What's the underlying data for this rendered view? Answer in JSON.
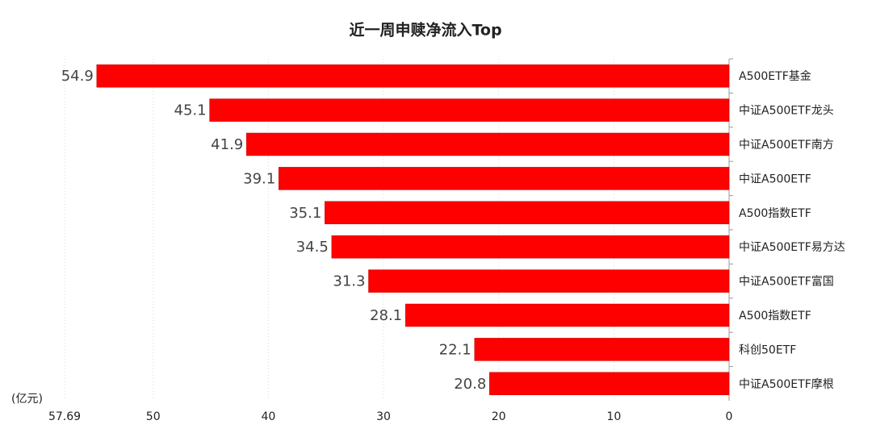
{
  "chart_data": {
    "type": "barh",
    "title": "近一周申赎净流入Top",
    "unit": "(亿元)",
    "categories": [
      "A500ETF基金",
      "中证A500ETF龙头",
      "中证A500ETF南方",
      "中证A500ETF",
      "A500指数ETF",
      "中证A500ETF易方达",
      "中证A500ETF富国",
      "A500指数ETF",
      "科创50ETF",
      "中证A500ETF摩根"
    ],
    "values": [
      54.9,
      45.1,
      41.9,
      39.1,
      35.1,
      34.5,
      31.3,
      28.1,
      22.1,
      20.8
    ],
    "color": "#ff0000",
    "xlim": [
      57.69,
      0
    ],
    "xticks": [
      57.69,
      50,
      40,
      30,
      20,
      10,
      0
    ],
    "grid": true
  }
}
